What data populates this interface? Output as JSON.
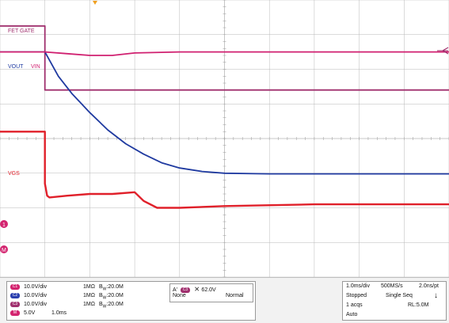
{
  "chart_data": {
    "type": "line",
    "title": "",
    "xlabel": "",
    "ylabel": "",
    "grid": true,
    "divisions": {
      "x": 10,
      "y": 8
    },
    "xlim": [
      -1.0,
      9.0
    ],
    "ylim": [
      -4.5,
      3.5
    ],
    "trigger_position_div": 0,
    "series": [
      {
        "name": "FET GATE",
        "color": "#a0306e",
        "x": [
          -1.0,
          0.0,
          0.0,
          9.0
        ],
        "y": [
          2.75,
          2.75,
          0.9,
          0.9
        ]
      },
      {
        "name": "VOUT",
        "color": "#1f3aa0",
        "x": [
          -1.0,
          0.0,
          0.3,
          0.6,
          1.0,
          1.4,
          1.8,
          2.2,
          2.6,
          3.0,
          3.5,
          4.0,
          5.0,
          6.0,
          7.0,
          9.0
        ],
        "y": [
          2.0,
          2.0,
          1.3,
          0.8,
          0.25,
          -0.25,
          -0.65,
          -0.95,
          -1.2,
          -1.35,
          -1.45,
          -1.5,
          -1.52,
          -1.52,
          -1.52,
          -1.52
        ]
      },
      {
        "name": "VIN",
        "color": "#d02070",
        "x": [
          -1.0,
          0.0,
          0.5,
          1.0,
          1.5,
          2.0,
          3.0,
          5.0,
          9.0
        ],
        "y": [
          2.0,
          2.0,
          1.95,
          1.9,
          1.9,
          1.97,
          2.0,
          2.0,
          2.0
        ]
      },
      {
        "name": "VGS",
        "color": "#e0202a",
        "x": [
          -1.0,
          0.0,
          0.0,
          0.05,
          0.1,
          0.5,
          1.0,
          1.5,
          2.0,
          2.2,
          2.5,
          3.0,
          4.0,
          6.0,
          9.0
        ],
        "y": [
          -0.3,
          -0.3,
          -1.8,
          -2.15,
          -2.2,
          -2.15,
          -2.1,
          -2.1,
          -2.05,
          -2.3,
          -2.5,
          -2.5,
          -2.45,
          -2.4,
          -2.4
        ]
      }
    ]
  },
  "channel_labels": {
    "fet_gate": "FET GATE",
    "vout": "VOUT",
    "vin": "VIN",
    "vgs": "VGS"
  },
  "readout": {
    "channels": [
      {
        "badge": "C1",
        "scale": "10.0V/div",
        "impedance": "1MΩ",
        "bw": "B",
        "bw_sub": "W",
        "bw_value": ":20.0M",
        "color": "#d3246f"
      },
      {
        "badge": "C2",
        "scale": "10.0V/div",
        "impedance": "1MΩ",
        "bw": "B",
        "bw_sub": "W",
        "bw_value": ":20.0M",
        "color": "#2b3fae"
      },
      {
        "badge": "C3",
        "scale": "10.0V/div",
        "impedance": "1MΩ",
        "bw": "B",
        "bw_sub": "W",
        "bw_value": ":20.0M",
        "color": "#a0306e"
      }
    ],
    "math": {
      "badge": "M",
      "scale": "5.0V",
      "time": "1.0ms",
      "color": "#d3246f"
    },
    "trigger": {
      "a_label": "A'",
      "badge": "C3",
      "level": "62.0V",
      "coupling": "None",
      "mode": "Normal"
    },
    "acquisition": {
      "timebase": "1.0ms/div",
      "sample_rate": "500MS/s",
      "resolution": "2.0ns/pt",
      "state": "Stopped",
      "sequence": "Single Seq",
      "acqs": "1 acqs",
      "record_length": "RL:5.0M",
      "trigger_mode": "Auto"
    }
  },
  "markers": {
    "ch1": "1",
    "math": "M"
  }
}
